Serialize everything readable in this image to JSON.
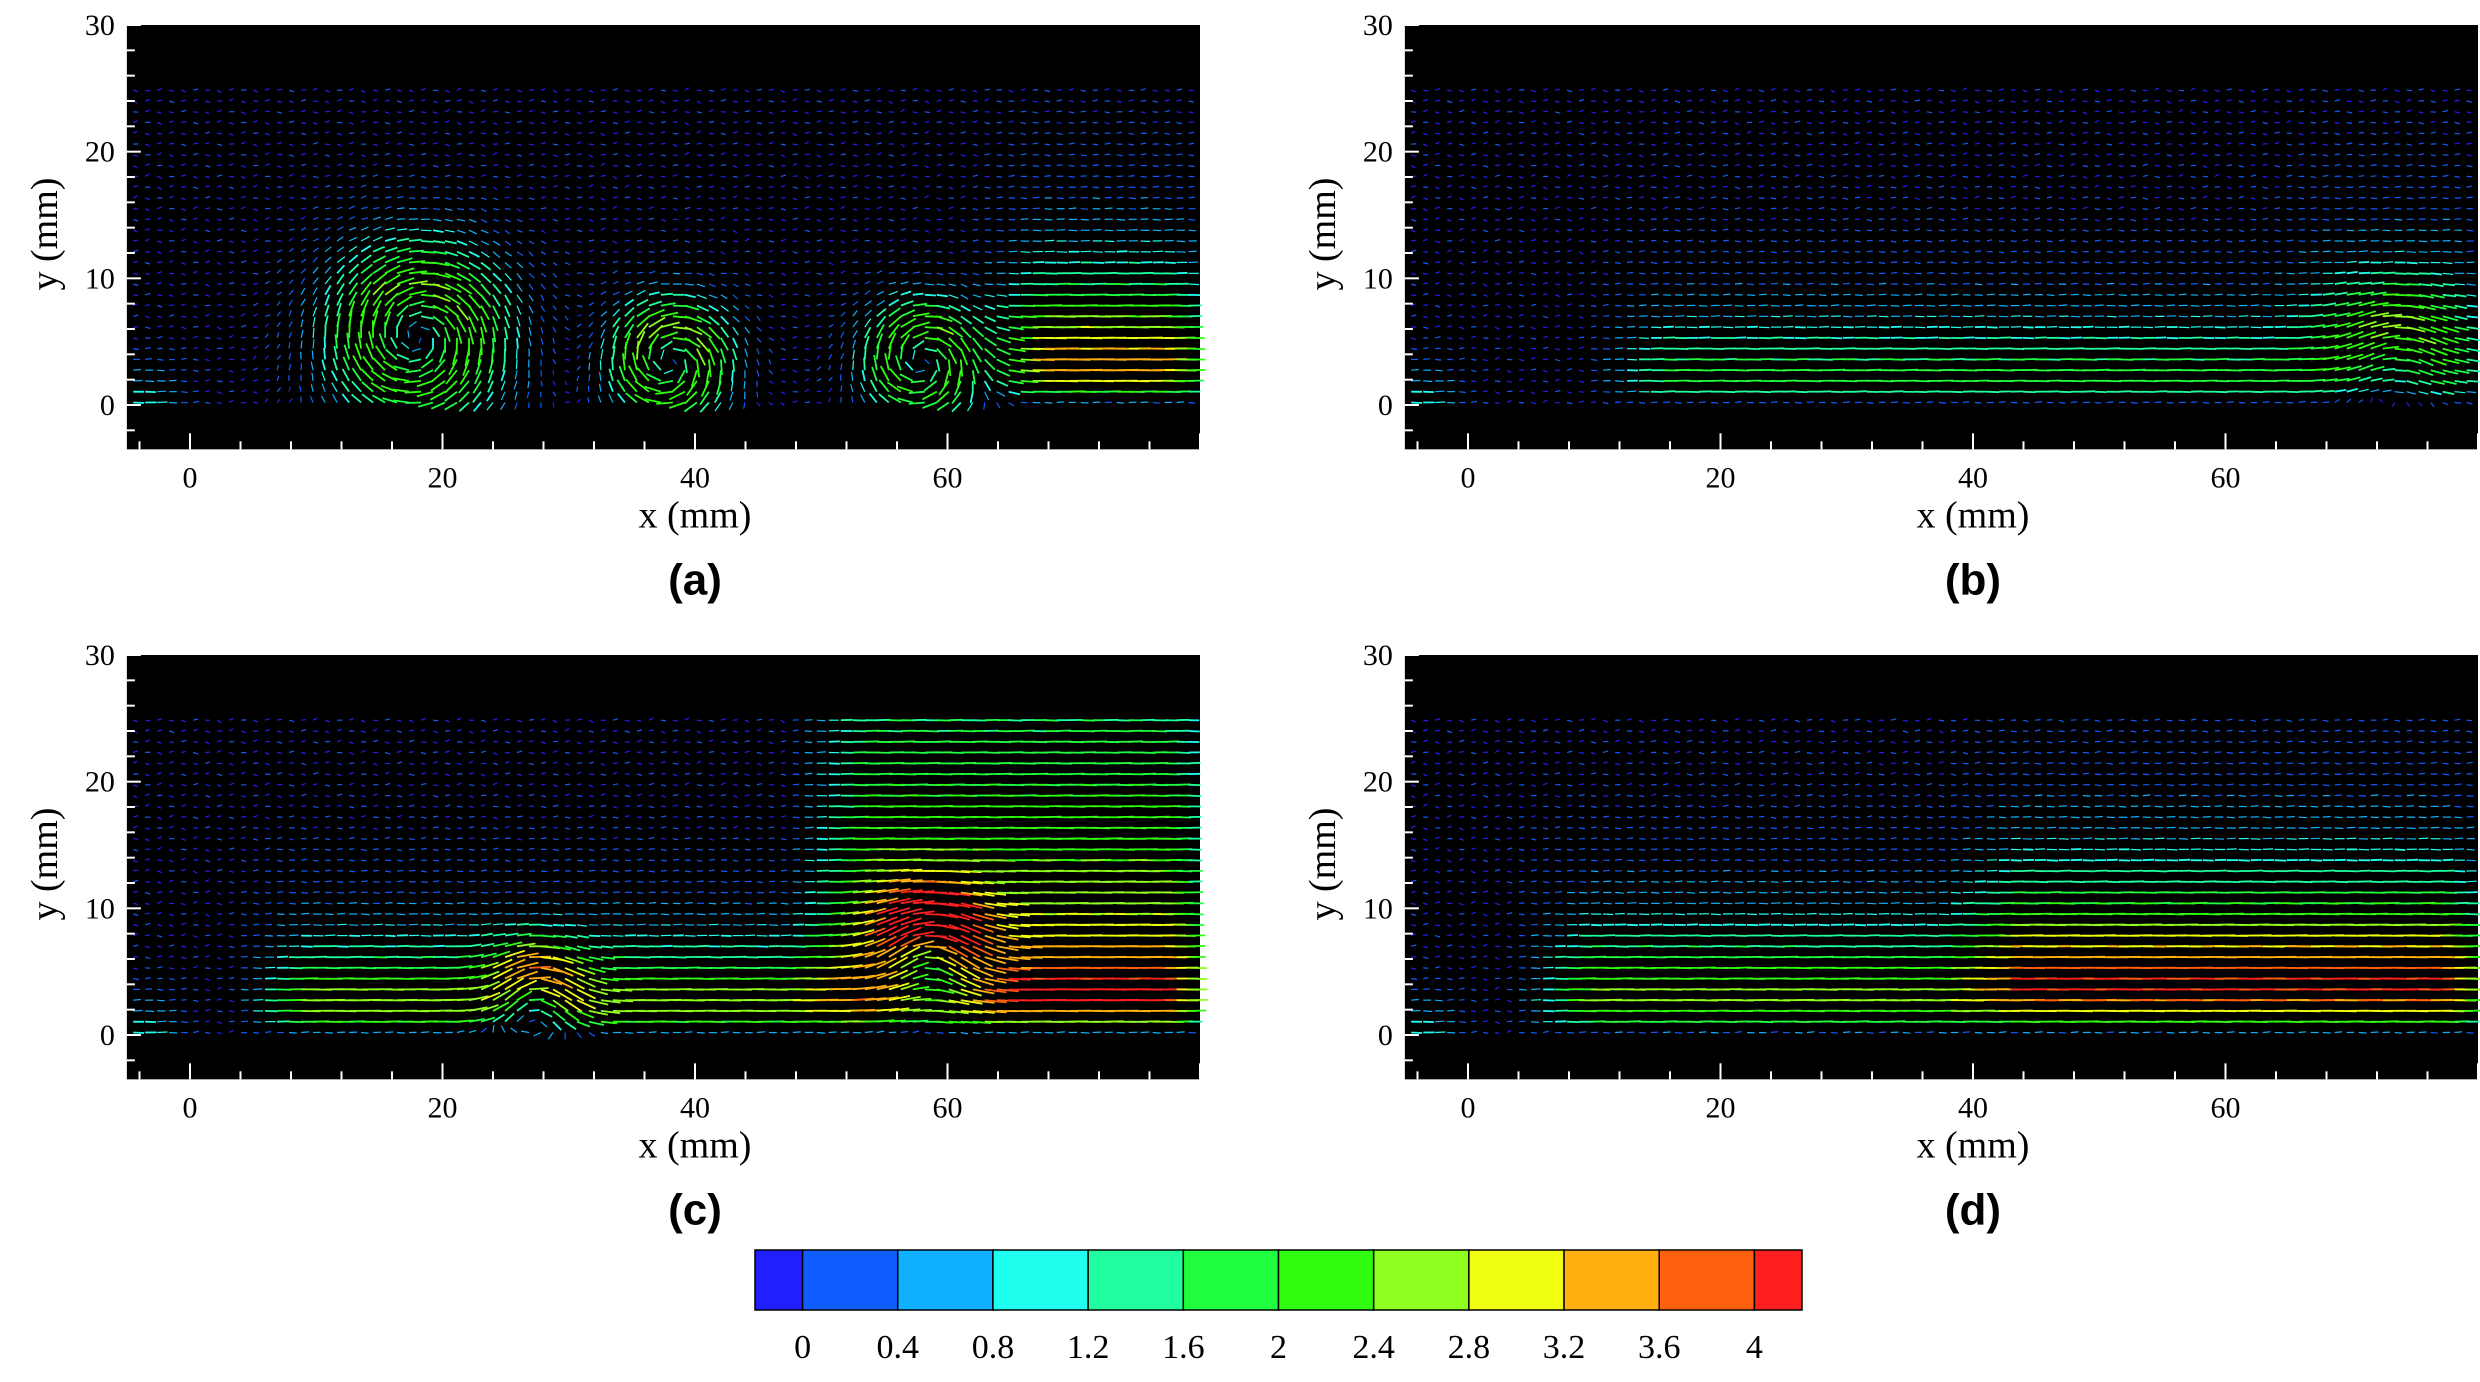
{
  "chart_data": [
    {
      "type": "vector-field",
      "panel_label": "(a)",
      "xlabel": "x (mm)",
      "ylabel": "y (mm)",
      "xlim": [
        -5,
        80
      ],
      "ylim": [
        -3.5,
        30
      ],
      "xticks": [
        0,
        20,
        40,
        60
      ],
      "yticks": [
        0,
        10,
        20,
        30
      ],
      "field_top_y": 25.5,
      "background": "#000000",
      "vortices": [
        {
          "x": 18,
          "y": 5.5,
          "strength": 2.5,
          "radius": 9
        },
        {
          "x": 38,
          "y": 3.5,
          "strength": 2.6,
          "radius": 6
        },
        {
          "x": 58,
          "y": 3.5,
          "strength": 2.4,
          "radius": 6
        }
      ],
      "wall_jets": [
        {
          "x_start": 64,
          "x_end": 80,
          "peak": 3.4,
          "thickness": 3.5
        }
      ],
      "magnitude_range": [
        0,
        4
      ]
    },
    {
      "type": "vector-field",
      "panel_label": "(b)",
      "xlabel": "x (mm)",
      "ylabel": "y (mm)",
      "xlim": [
        -5,
        80
      ],
      "ylim": [
        -3.5,
        30
      ],
      "xticks": [
        0,
        20,
        40,
        60
      ],
      "yticks": [
        0,
        10,
        20,
        30
      ],
      "field_top_y": 25.5,
      "background": "#000000",
      "vortices": [
        {
          "x": 73,
          "y": 5,
          "strength": 0.9,
          "radius": 6
        }
      ],
      "wall_jets": [
        {
          "x_start": 12,
          "x_end": 66,
          "peak": 1.8,
          "thickness": 2.5
        },
        {
          "x_start": 66,
          "x_end": 80,
          "peak": 2.4,
          "thickness": 3.5
        }
      ],
      "magnitude_range": [
        0,
        4
      ]
    },
    {
      "type": "vector-field",
      "panel_label": "(c)",
      "xlabel": "x (mm)",
      "ylabel": "y (mm)",
      "xlim": [
        -5,
        80
      ],
      "ylim": [
        -3.5,
        30
      ],
      "xticks": [
        0,
        20,
        40,
        60
      ],
      "yticks": [
        0,
        10,
        20,
        30
      ],
      "field_top_y": 25.5,
      "background": "#000000",
      "vortices": [
        {
          "x": 27,
          "y": 3.5,
          "strength": 1.8,
          "radius": 5
        },
        {
          "x": 58,
          "y": 7,
          "strength": 2.0,
          "radius": 6
        }
      ],
      "wall_jets": [
        {
          "x_start": 6,
          "x_end": 80,
          "peak": 2.8,
          "thickness": 2.5
        },
        {
          "x_start": 50,
          "x_end": 80,
          "peak": 2.3,
          "thickness": 12
        }
      ],
      "magnitude_range": [
        0,
        4
      ]
    },
    {
      "type": "vector-field",
      "panel_label": "(d)",
      "xlabel": "x (mm)",
      "ylabel": "y (mm)",
      "xlim": [
        -5,
        80
      ],
      "ylim": [
        -3.5,
        30
      ],
      "xticks": [
        0,
        20,
        40,
        60
      ],
      "yticks": [
        0,
        10,
        20,
        30
      ],
      "field_top_y": 25.5,
      "background": "#000000",
      "vortices": [],
      "wall_jets": [
        {
          "x_start": 6,
          "x_end": 40,
          "peak": 2.6,
          "thickness": 3
        },
        {
          "x_start": 40,
          "x_end": 80,
          "peak": 3.9,
          "thickness": 4
        }
      ],
      "magnitude_range": [
        0,
        4
      ]
    }
  ],
  "colorbar": {
    "ticks": [
      "0",
      "0.4",
      "0.8",
      "1.2",
      "1.6",
      "2",
      "2.4",
      "2.8",
      "3.2",
      "3.6",
      "4"
    ],
    "min": 0,
    "max": 4,
    "levels": [
      0,
      0.2,
      0.6,
      1.0,
      1.4,
      1.8,
      2.2,
      2.6,
      3.0,
      3.4,
      3.8,
      4.0
    ],
    "colors": [
      "#1f1fff",
      "#0f5cff",
      "#0fb0ff",
      "#1fffef",
      "#1fff9f",
      "#1fff3f",
      "#2fff0f",
      "#8fff1f",
      "#efff0f",
      "#ffb00f",
      "#ff600f",
      "#ff1f1f"
    ]
  }
}
